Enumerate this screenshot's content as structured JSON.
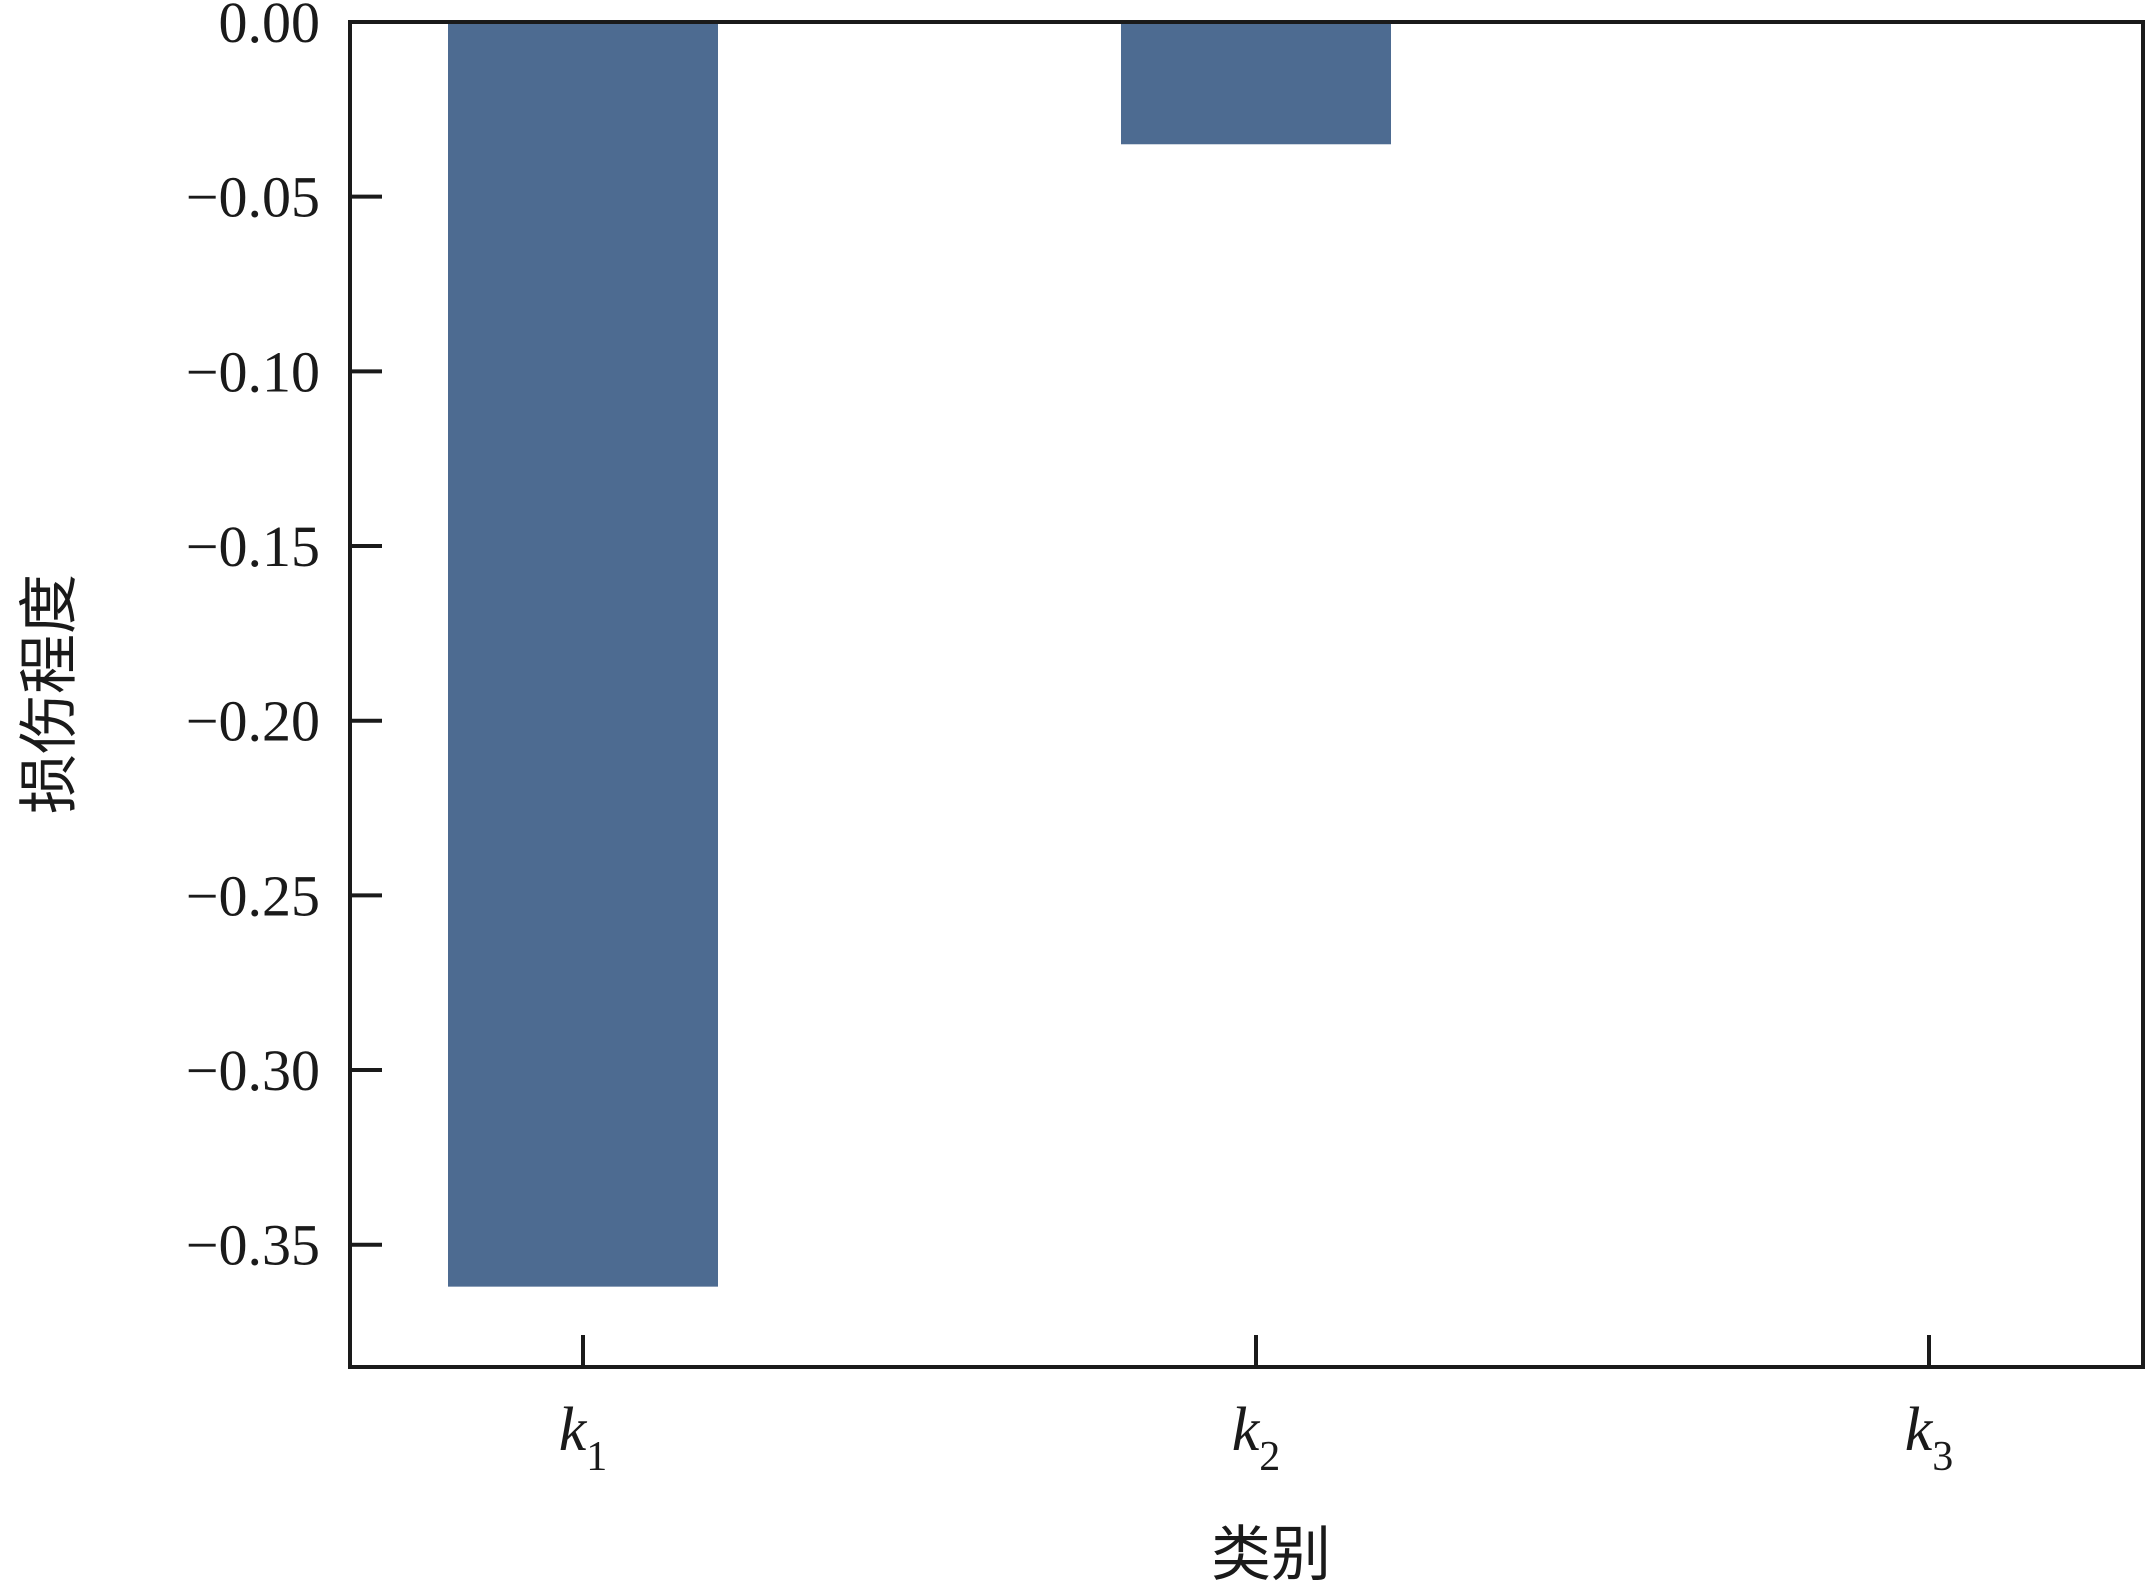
{
  "chart_data": {
    "type": "bar",
    "categories": [
      "k1",
      "k2",
      "k3"
    ],
    "category_labels": [
      {
        "main": "k",
        "sub": "1"
      },
      {
        "main": "k",
        "sub": "2"
      },
      {
        "main": "k",
        "sub": "3"
      }
    ],
    "values": [
      -0.362,
      -0.035,
      0.0
    ],
    "xlabel": "类别",
    "ylabel": "损伤程度",
    "ylim": [
      -0.385,
      0.0
    ],
    "yticks": [
      0.0,
      -0.05,
      -0.1,
      -0.15,
      -0.2,
      -0.25,
      -0.3,
      -0.35
    ],
    "ytick_labels": [
      "0.00",
      "−0.05",
      "−0.10",
      "−0.15",
      "−0.20",
      "−0.25",
      "−0.30",
      "−0.35"
    ],
    "grid": false,
    "legend": "none",
    "bar_color": "#4d6b91"
  }
}
